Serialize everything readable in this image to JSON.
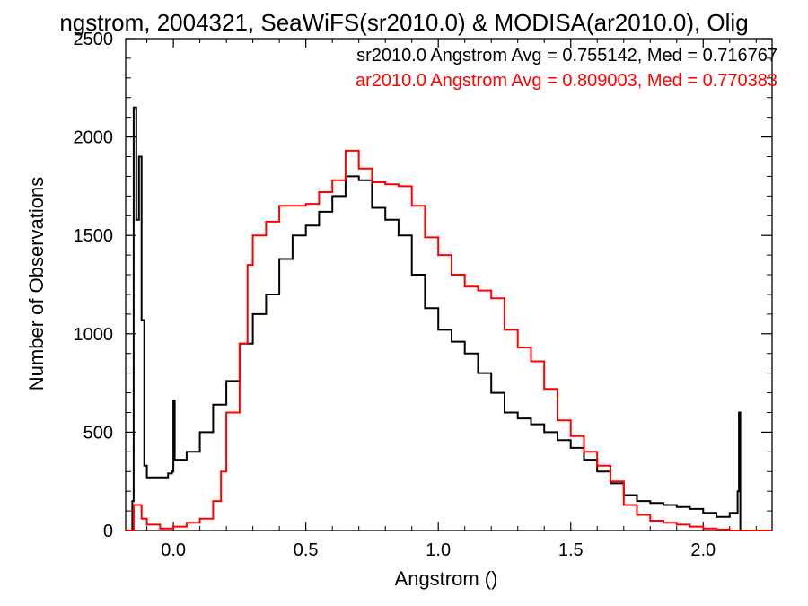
{
  "chart_data": {
    "type": "line",
    "title": "ngstrom, 2004321, SeaWiFS(sr2010.0) & MODISA(ar2010.0), Olig",
    "xlabel": "Angstrom ()",
    "ylabel": "Number of Observations",
    "xlim": [
      -0.18,
      2.26
    ],
    "ylim": [
      0,
      2500
    ],
    "xticks": [
      0.0,
      0.5,
      1.0,
      1.5,
      2.0
    ],
    "xtick_labels": [
      "0.0",
      "0.5",
      "1.0",
      "1.5",
      "2.0"
    ],
    "yticks": [
      0,
      500,
      1000,
      1500,
      2000,
      2500
    ],
    "ytick_labels": [
      "0",
      "500",
      "1000",
      "1500",
      "2000",
      "2500"
    ],
    "grid": false,
    "step": true,
    "annotations": [
      {
        "text": "sr2010.0 Angstrom Avg = 0.755142, Med = 0.716767",
        "color": "#000000"
      },
      {
        "text": "ar2010.0 Angstrom Avg = 0.809003, Med = 0.770383",
        "color": "#ff0000"
      }
    ],
    "series": [
      {
        "color": "#000000",
        "points": [
          [
            -0.18,
            0
          ],
          [
            -0.16,
            0
          ],
          [
            -0.155,
            150
          ],
          [
            -0.15,
            2150
          ],
          [
            -0.14,
            1580
          ],
          [
            -0.13,
            1900
          ],
          [
            -0.12,
            1070
          ],
          [
            -0.11,
            330
          ],
          [
            -0.1,
            270
          ],
          [
            -0.05,
            270
          ],
          [
            -0.02,
            290
          ],
          [
            -0.005,
            300
          ],
          [
            0.0,
            660
          ],
          [
            0.005,
            360
          ],
          [
            0.05,
            400
          ],
          [
            0.1,
            500
          ],
          [
            0.15,
            640
          ],
          [
            0.2,
            760
          ],
          [
            0.25,
            950
          ],
          [
            0.3,
            1100
          ],
          [
            0.35,
            1200
          ],
          [
            0.4,
            1380
          ],
          [
            0.45,
            1500
          ],
          [
            0.5,
            1550
          ],
          [
            0.55,
            1620
          ],
          [
            0.6,
            1700
          ],
          [
            0.65,
            1800
          ],
          [
            0.7,
            1780
          ],
          [
            0.75,
            1640
          ],
          [
            0.8,
            1580
          ],
          [
            0.85,
            1500
          ],
          [
            0.9,
            1300
          ],
          [
            0.95,
            1130
          ],
          [
            1.0,
            1020
          ],
          [
            1.05,
            960
          ],
          [
            1.1,
            900
          ],
          [
            1.15,
            800
          ],
          [
            1.2,
            700
          ],
          [
            1.25,
            600
          ],
          [
            1.3,
            570
          ],
          [
            1.35,
            540
          ],
          [
            1.4,
            500
          ],
          [
            1.45,
            460
          ],
          [
            1.5,
            420
          ],
          [
            1.55,
            360
          ],
          [
            1.6,
            300
          ],
          [
            1.65,
            240
          ],
          [
            1.7,
            180
          ],
          [
            1.75,
            150
          ],
          [
            1.8,
            140
          ],
          [
            1.85,
            130
          ],
          [
            1.9,
            120
          ],
          [
            1.95,
            110
          ],
          [
            2.0,
            90
          ],
          [
            2.05,
            70
          ],
          [
            2.1,
            90
          ],
          [
            2.13,
            200
          ],
          [
            2.135,
            600
          ],
          [
            2.14,
            0
          ],
          [
            2.26,
            0
          ]
        ]
      },
      {
        "color": "#ff0000",
        "points": [
          [
            -0.18,
            0
          ],
          [
            -0.16,
            0
          ],
          [
            -0.15,
            130
          ],
          [
            -0.12,
            60
          ],
          [
            -0.1,
            30
          ],
          [
            -0.05,
            10
          ],
          [
            0.0,
            20
          ],
          [
            0.05,
            40
          ],
          [
            0.1,
            60
          ],
          [
            0.15,
            150
          ],
          [
            0.18,
            300
          ],
          [
            0.2,
            600
          ],
          [
            0.25,
            950
          ],
          [
            0.28,
            1350
          ],
          [
            0.3,
            1500
          ],
          [
            0.35,
            1570
          ],
          [
            0.4,
            1650
          ],
          [
            0.45,
            1650
          ],
          [
            0.5,
            1660
          ],
          [
            0.55,
            1720
          ],
          [
            0.6,
            1780
          ],
          [
            0.65,
            1930
          ],
          [
            0.7,
            1840
          ],
          [
            0.75,
            1770
          ],
          [
            0.8,
            1760
          ],
          [
            0.85,
            1750
          ],
          [
            0.9,
            1650
          ],
          [
            0.95,
            1490
          ],
          [
            1.0,
            1400
          ],
          [
            1.05,
            1300
          ],
          [
            1.1,
            1240
          ],
          [
            1.15,
            1220
          ],
          [
            1.2,
            1180
          ],
          [
            1.25,
            1020
          ],
          [
            1.3,
            930
          ],
          [
            1.35,
            860
          ],
          [
            1.4,
            720
          ],
          [
            1.45,
            560
          ],
          [
            1.5,
            480
          ],
          [
            1.55,
            400
          ],
          [
            1.6,
            330
          ],
          [
            1.65,
            250
          ],
          [
            1.7,
            130
          ],
          [
            1.75,
            80
          ],
          [
            1.8,
            50
          ],
          [
            1.85,
            40
          ],
          [
            1.9,
            30
          ],
          [
            1.95,
            20
          ],
          [
            2.0,
            10
          ],
          [
            2.05,
            5
          ],
          [
            2.1,
            0
          ],
          [
            2.26,
            0
          ]
        ]
      }
    ]
  }
}
